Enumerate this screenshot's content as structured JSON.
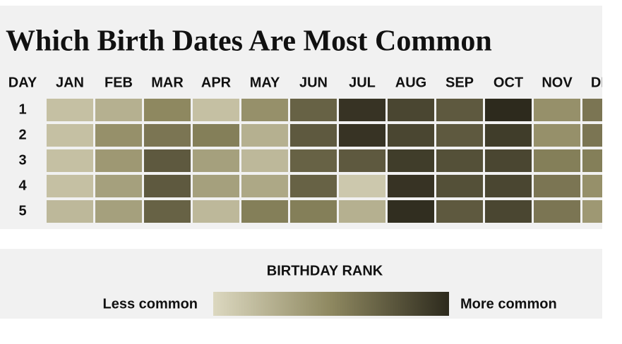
{
  "chart_data": {
    "type": "heatmap",
    "title": "Which Birth Dates Are Most Common",
    "y_label": "DAY",
    "x_categories": [
      "JAN",
      "FEB",
      "MAR",
      "APR",
      "MAY",
      "JUN",
      "JUL",
      "AUG",
      "SEP",
      "OCT",
      "NOV",
      "DEC"
    ],
    "y_categories": [
      "1",
      "2",
      "3",
      "4",
      "5"
    ],
    "values": [
      [
        0.15,
        0.25,
        0.5,
        0.15,
        0.45,
        0.7,
        0.95,
        0.85,
        0.75,
        1.0,
        0.45,
        0.6
      ],
      [
        0.15,
        0.45,
        0.6,
        0.55,
        0.25,
        0.75,
        0.95,
        0.85,
        0.75,
        0.9,
        0.45,
        0.6
      ],
      [
        0.15,
        0.4,
        0.75,
        0.35,
        0.2,
        0.7,
        0.75,
        0.9,
        0.8,
        0.85,
        0.55,
        0.55
      ],
      [
        0.15,
        0.35,
        0.75,
        0.35,
        0.3,
        0.7,
        0.1,
        0.95,
        0.8,
        0.85,
        0.6,
        0.45
      ],
      [
        0.2,
        0.35,
        0.7,
        0.2,
        0.55,
        0.55,
        0.25,
        0.98,
        0.75,
        0.85,
        0.6,
        0.4
      ]
    ],
    "colorscale": [
      "#dcd8c0",
      "#8e8860",
      "#2d2a1d"
    ],
    "legend_title": "BIRTHDAY RANK",
    "legend_low": "Less common",
    "legend_high": "More common"
  }
}
